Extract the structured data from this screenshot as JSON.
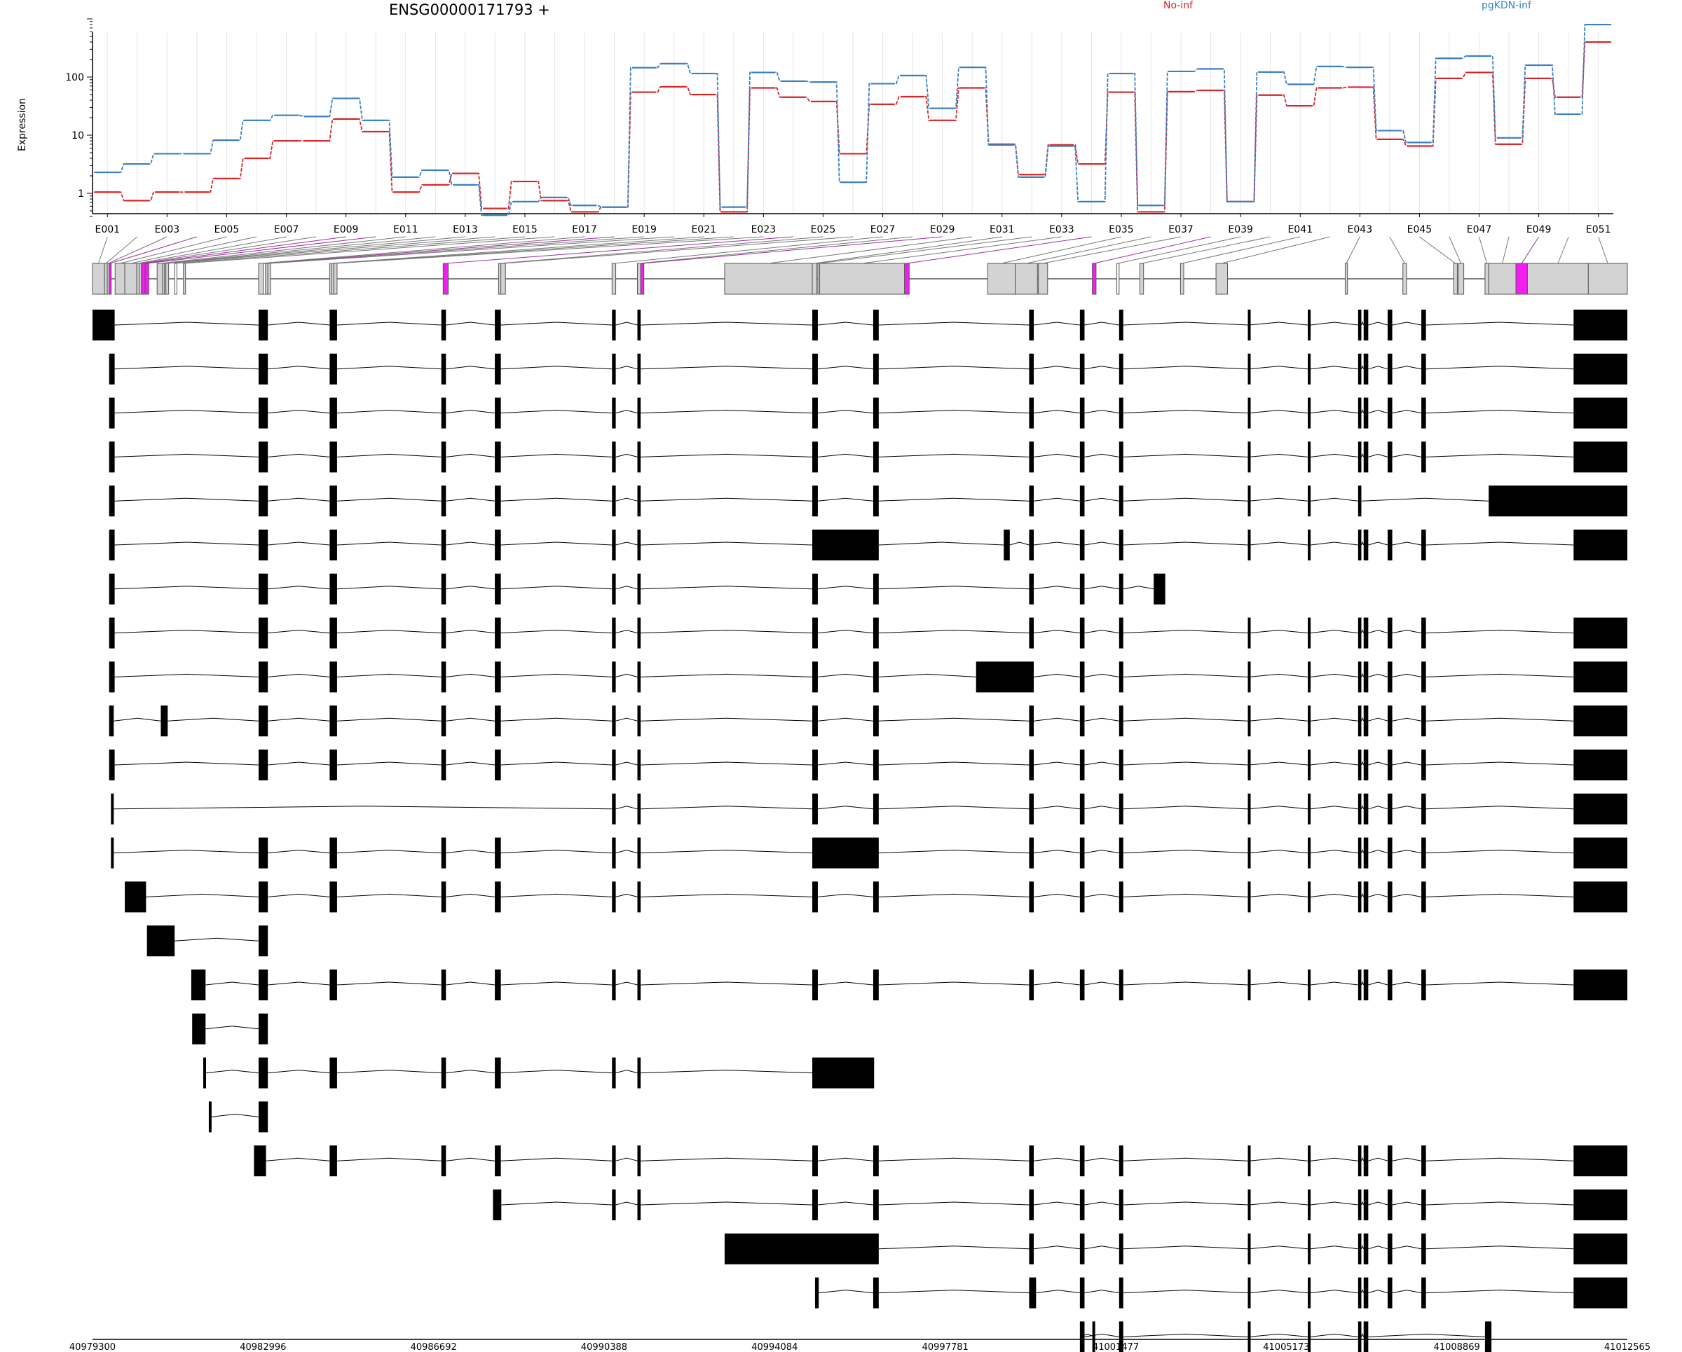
{
  "chart_data": {
    "type": "line",
    "title": "ENSG00000171793 +",
    "ylabel": "Expression",
    "yscale": "log",
    "yticks": [
      1,
      10,
      100
    ],
    "ylim": [
      0.35,
      1000
    ],
    "grid": true,
    "legend_position": "top",
    "series": [
      {
        "name": "No-inf",
        "color": "#d62728",
        "values": [
          1.05,
          0.75,
          1.05,
          1.05,
          1.8,
          4,
          8,
          8,
          19,
          11.5,
          1.05,
          1.4,
          2.2,
          0.55,
          1.6,
          0.75,
          0.48,
          0.58,
          55,
          68,
          50,
          0.48,
          65,
          45,
          38,
          4.8,
          34,
          46,
          18,
          65,
          7,
          2.1,
          6.8,
          3.2,
          55,
          0.48,
          56,
          59,
          0.72,
          49,
          32,
          65,
          67,
          8.5,
          6.5,
          95,
          120,
          7,
          95,
          45,
          400
        ]
      },
      {
        "name": "pgKDN-inf",
        "color": "#3b7fc4",
        "values": [
          2.3,
          3.2,
          4.8,
          4.8,
          8.2,
          18,
          22,
          21,
          43,
          18,
          1.9,
          2.5,
          1.4,
          0.42,
          0.72,
          0.85,
          0.62,
          0.58,
          145,
          170,
          115,
          0.58,
          120,
          85,
          82,
          1.55,
          77,
          106,
          29,
          147,
          6.8,
          1.9,
          6.5,
          0.72,
          115,
          0.62,
          125,
          138,
          0.72,
          122,
          75,
          152,
          147,
          12,
          7.5,
          210,
          230,
          9,
          160,
          23,
          800
        ]
      }
    ],
    "exon_labels": [
      "E001",
      "E003",
      "E005",
      "E007",
      "E009",
      "E011",
      "E013",
      "E015",
      "E017",
      "E019",
      "E021",
      "E023",
      "E025",
      "E027",
      "E029",
      "E031",
      "E033",
      "E035",
      "E037",
      "E039",
      "E041",
      "E043",
      "E045",
      "E047",
      "E049",
      "E051"
    ],
    "genomic_ticks": [
      "40979300",
      "40982996",
      "40986692",
      "40990388",
      "40994084",
      "40997781",
      "41001477",
      "41005173",
      "41008869",
      "41012565"
    ],
    "genomic_range": [
      40979300,
      41012565
    ],
    "colors": {
      "highlight": "#f21ef0",
      "exon_fill": "#d3d3d3",
      "transcript": "#000000"
    }
  }
}
